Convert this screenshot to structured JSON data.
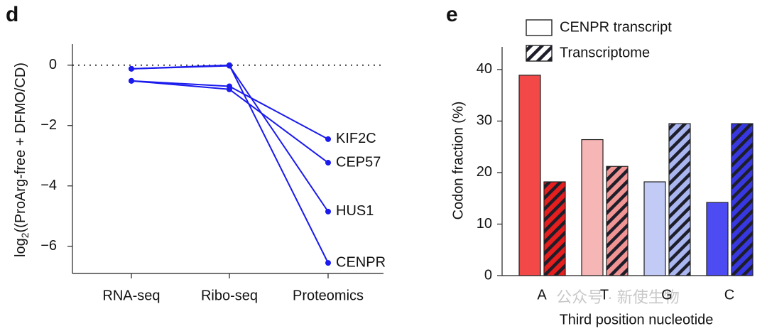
{
  "chart_data": [
    {
      "type": "line",
      "panel_label": "d",
      "y_label": {
        "text": "log",
        "subscript": "2",
        "rest": "((ProArg-free + DFMO/CD)"
      },
      "categories": [
        "RNA-seq",
        "Ribo-seq",
        "Proteomics"
      ],
      "series": [
        {
          "name": "KIF2C",
          "color": "#1a1aee",
          "values": [
            -0.52,
            -0.7,
            -2.45
          ]
        },
        {
          "name": "CEP57",
          "color": "#1a1aee",
          "values": [
            -0.52,
            -0.8,
            -3.23
          ]
        },
        {
          "name": "HUS1",
          "color": "#1a1aee",
          "values": [
            -0.12,
            -0.02,
            -4.85
          ]
        },
        {
          "name": "CENPR",
          "color": "#1a1aee",
          "values": [
            -0.12,
            0,
            -6.55
          ]
        }
      ],
      "reference_line": 0,
      "ylim": [
        -6.9,
        0.7
      ],
      "yticks": [
        0,
        {
          "value": -2,
          "label": "−2"
        },
        {
          "value": -4,
          "label": "−4"
        },
        {
          "value": -6,
          "label": "−6"
        }
      ]
    },
    {
      "type": "bar",
      "panel_label": "e",
      "x_label": "Third position nucleotide",
      "y_label": "Codon fraction (%)",
      "categories": [
        "A",
        "T",
        "G",
        "C"
      ],
      "series": [
        {
          "name": "CENPR transcript",
          "hatch": false,
          "colors": [
            "#f24848",
            "#f6b6b6",
            "#c2caf6",
            "#4c4cf2"
          ],
          "values": [
            38.9,
            26.4,
            18.2,
            14.2
          ]
        },
        {
          "name": "Transcriptome",
          "hatch": true,
          "colors": [
            "#e61e1e",
            "#f19494",
            "#aab6f0",
            "#3838e2"
          ],
          "values": [
            18.2,
            21.2,
            29.5,
            29.5
          ]
        }
      ],
      "ylim": [
        0,
        44.4
      ],
      "yticks": [
        0,
        10,
        20,
        30,
        40
      ]
    }
  ],
  "watermark": "公众号 · 新使生物"
}
